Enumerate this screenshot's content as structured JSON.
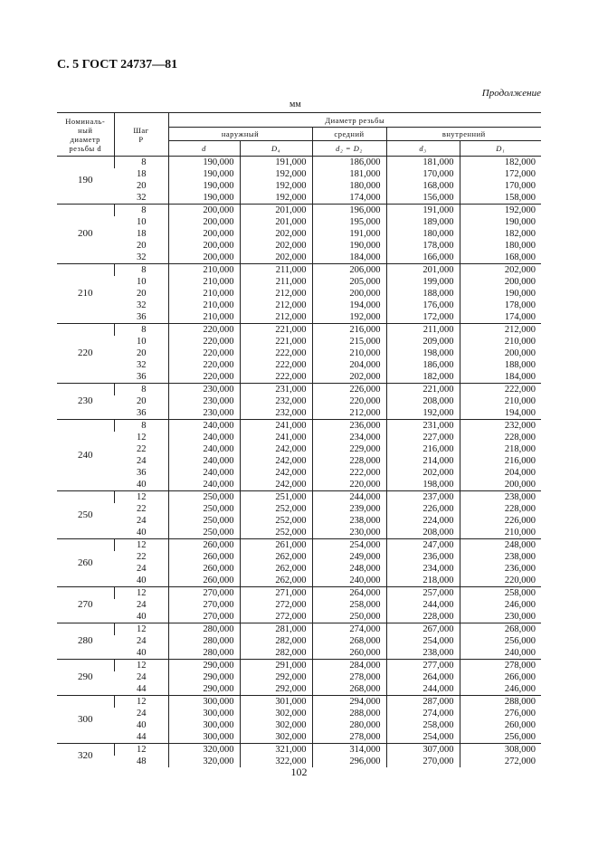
{
  "header": {
    "title": "С. 5 ГОСТ 24737—81",
    "continuation": "Продолжение",
    "unit": "мм"
  },
  "table": {
    "head": {
      "nominal": [
        "Номиналь-",
        "ный",
        "диаметр",
        "резьбы d"
      ],
      "pitch": [
        "Шаг",
        "P"
      ],
      "diameter": "Диаметр резьбы",
      "outer": "наружный",
      "middle": "средний",
      "inner": "внутренний",
      "d": "d",
      "D4": "D₄",
      "d2": "d₂ = D₂",
      "d3": "d₃",
      "D1": "D₁"
    },
    "groups": [
      {
        "nominal": "190",
        "rows": [
          [
            "8",
            "190,000",
            "191,000",
            "186,000",
            "181,000",
            "182,000"
          ],
          [
            "18",
            "190,000",
            "192,000",
            "181,000",
            "170,000",
            "172,000"
          ],
          [
            "20",
            "190,000",
            "192,000",
            "180,000",
            "168,000",
            "170,000"
          ],
          [
            "32",
            "190,000",
            "192,000",
            "174,000",
            "156,000",
            "158,000"
          ]
        ]
      },
      {
        "nominal": "200",
        "rows": [
          [
            "8",
            "200,000",
            "201,000",
            "196,000",
            "191,000",
            "192,000"
          ],
          [
            "10",
            "200,000",
            "201,000",
            "195,000",
            "189,000",
            "190,000"
          ],
          [
            "18",
            "200,000",
            "202,000",
            "191,000",
            "180,000",
            "182,000"
          ],
          [
            "20",
            "200,000",
            "202,000",
            "190,000",
            "178,000",
            "180,000"
          ],
          [
            "32",
            "200,000",
            "202,000",
            "184,000",
            "166,000",
            "168,000"
          ]
        ]
      },
      {
        "nominal": "210",
        "rows": [
          [
            "8",
            "210,000",
            "211,000",
            "206,000",
            "201,000",
            "202,000"
          ],
          [
            "10",
            "210,000",
            "211,000",
            "205,000",
            "199,000",
            "200,000"
          ],
          [
            "20",
            "210,000",
            "212,000",
            "200,000",
            "188,000",
            "190,000"
          ],
          [
            "32",
            "210,000",
            "212,000",
            "194,000",
            "176,000",
            "178,000"
          ],
          [
            "36",
            "210,000",
            "212,000",
            "192,000",
            "172,000",
            "174,000"
          ]
        ]
      },
      {
        "nominal": "220",
        "rows": [
          [
            "8",
            "220,000",
            "221,000",
            "216,000",
            "211,000",
            "212,000"
          ],
          [
            "10",
            "220,000",
            "221,000",
            "215,000",
            "209,000",
            "210,000"
          ],
          [
            "20",
            "220,000",
            "222,000",
            "210,000",
            "198,000",
            "200,000"
          ],
          [
            "32",
            "220,000",
            "222,000",
            "204,000",
            "186,000",
            "188,000"
          ],
          [
            "36",
            "220,000",
            "222,000",
            "202,000",
            "182,000",
            "184,000"
          ]
        ]
      },
      {
        "nominal": "230",
        "rows": [
          [
            "8",
            "230,000",
            "231,000",
            "226,000",
            "221,000",
            "222,000"
          ],
          [
            "20",
            "230,000",
            "232,000",
            "220,000",
            "208,000",
            "210,000"
          ],
          [
            "36",
            "230,000",
            "232,000",
            "212,000",
            "192,000",
            "194,000"
          ]
        ]
      },
      {
        "nominal": "240",
        "rows": [
          [
            "8",
            "240,000",
            "241,000",
            "236,000",
            "231,000",
            "232,000"
          ],
          [
            "12",
            "240,000",
            "241,000",
            "234,000",
            "227,000",
            "228,000"
          ],
          [
            "22",
            "240,000",
            "242,000",
            "229,000",
            "216,000",
            "218,000"
          ],
          [
            "24",
            "240,000",
            "242,000",
            "228,000",
            "214,000",
            "216,000"
          ],
          [
            "36",
            "240,000",
            "242,000",
            "222,000",
            "202,000",
            "204,000"
          ],
          [
            "40",
            "240,000",
            "242,000",
            "220,000",
            "198,000",
            "200,000"
          ]
        ]
      },
      {
        "nominal": "250",
        "rows": [
          [
            "12",
            "250,000",
            "251,000",
            "244,000",
            "237,000",
            "238,000"
          ],
          [
            "22",
            "250,000",
            "252,000",
            "239,000",
            "226,000",
            "228,000"
          ],
          [
            "24",
            "250,000",
            "252,000",
            "238,000",
            "224,000",
            "226,000"
          ],
          [
            "40",
            "250,000",
            "252,000",
            "230,000",
            "208,000",
            "210,000"
          ]
        ]
      },
      {
        "nominal": "260",
        "rows": [
          [
            "12",
            "260,000",
            "261,000",
            "254,000",
            "247,000",
            "248,000"
          ],
          [
            "22",
            "260,000",
            "262,000",
            "249,000",
            "236,000",
            "238,000"
          ],
          [
            "24",
            "260,000",
            "262,000",
            "248,000",
            "234,000",
            "236,000"
          ],
          [
            "40",
            "260,000",
            "262,000",
            "240,000",
            "218,000",
            "220,000"
          ]
        ]
      },
      {
        "nominal": "270",
        "rows": [
          [
            "12",
            "270,000",
            "271,000",
            "264,000",
            "257,000",
            "258,000"
          ],
          [
            "24",
            "270,000",
            "272,000",
            "258,000",
            "244,000",
            "246,000"
          ],
          [
            "40",
            "270,000",
            "272,000",
            "250,000",
            "228,000",
            "230,000"
          ]
        ]
      },
      {
        "nominal": "280",
        "rows": [
          [
            "12",
            "280,000",
            "281,000",
            "274,000",
            "267,000",
            "268,000"
          ],
          [
            "24",
            "280,000",
            "282,000",
            "268,000",
            "254,000",
            "256,000"
          ],
          [
            "40",
            "280,000",
            "282,000",
            "260,000",
            "238,000",
            "240,000"
          ]
        ]
      },
      {
        "nominal": "290",
        "rows": [
          [
            "12",
            "290,000",
            "291,000",
            "284,000",
            "277,000",
            "278,000"
          ],
          [
            "24",
            "290,000",
            "292,000",
            "278,000",
            "264,000",
            "266,000"
          ],
          [
            "44",
            "290,000",
            "292,000",
            "268,000",
            "244,000",
            "246,000"
          ]
        ]
      },
      {
        "nominal": "300",
        "rows": [
          [
            "12",
            "300,000",
            "301,000",
            "294,000",
            "287,000",
            "288,000"
          ],
          [
            "24",
            "300,000",
            "302,000",
            "288,000",
            "274,000",
            "276,000"
          ],
          [
            "40",
            "300,000",
            "302,000",
            "280,000",
            "258,000",
            "260,000"
          ],
          [
            "44",
            "300,000",
            "302,000",
            "278,000",
            "254,000",
            "256,000"
          ]
        ]
      },
      {
        "nominal": "320",
        "rows": [
          [
            "12",
            "320,000",
            "321,000",
            "314,000",
            "307,000",
            "308,000"
          ],
          [
            "48",
            "320,000",
            "322,000",
            "296,000",
            "270,000",
            "272,000"
          ]
        ]
      }
    ]
  },
  "footer": {
    "page": "102"
  }
}
